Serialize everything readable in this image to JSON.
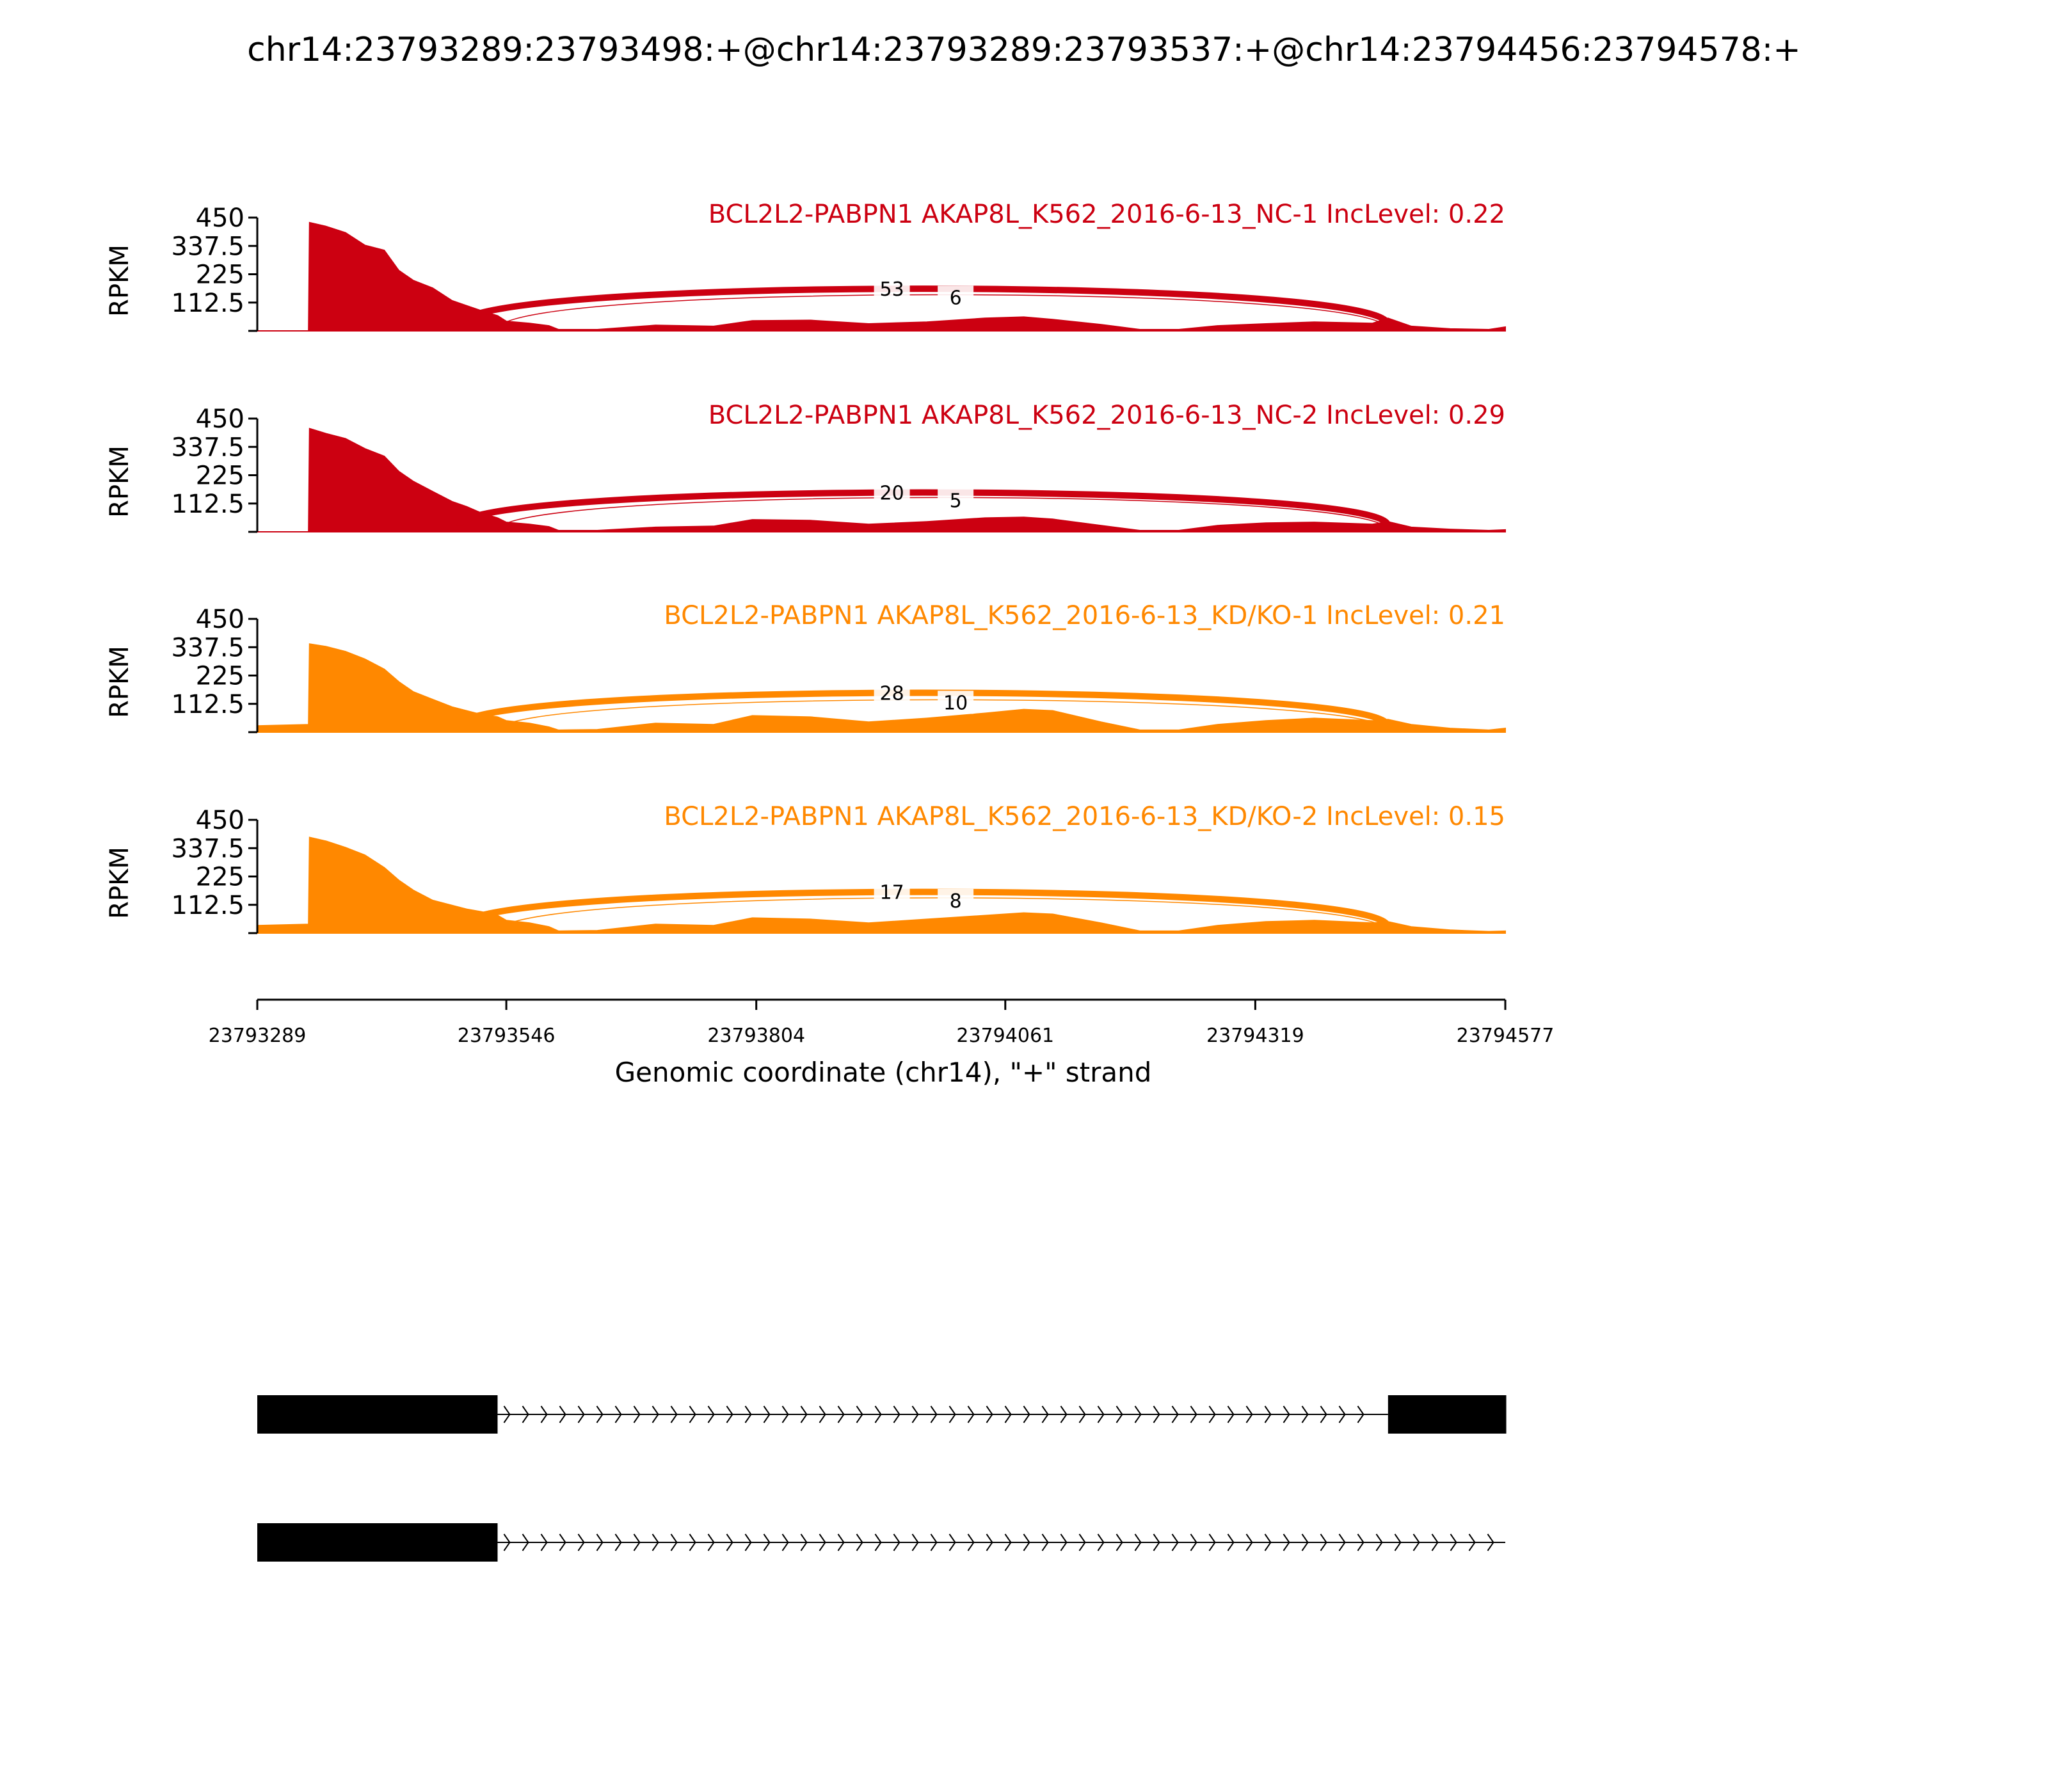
{
  "chart_data": {
    "type": "area",
    "title": "chr14:23793289:23793498:+@chr14:23793289:23793537:+@chr14:23794456:23794578:+",
    "xlabel": "Genomic coordinate (chr14), \"+\" strand",
    "ylabel": "RPKM",
    "xlim": [
      23793289,
      23794577
    ],
    "ylim": [
      0,
      450
    ],
    "x_ticks": [
      "23793289",
      "23793546",
      "23793804",
      "23794061",
      "23794319",
      "23794577"
    ],
    "y_ticks": [
      "450",
      "337.5",
      "225",
      "112.5"
    ],
    "tracks": [
      {
        "label": "BCL2L2-PABPN1 AKAP8L_K562_2016-6-13_NC-1 IncLevel: 0.22",
        "color": "#CC0011",
        "coverage": [
          [
            23793289,
            0
          ],
          [
            23793342,
            0
          ],
          [
            23793343,
            430
          ],
          [
            23793360,
            415
          ],
          [
            23793380,
            390
          ],
          [
            23793400,
            340
          ],
          [
            23793420,
            320
          ],
          [
            23793435,
            240
          ],
          [
            23793450,
            200
          ],
          [
            23793470,
            170
          ],
          [
            23793490,
            120
          ],
          [
            23793505,
            100
          ],
          [
            23793520,
            80
          ],
          [
            23793537,
            60
          ],
          [
            23793546,
            38
          ],
          [
            23793570,
            30
          ],
          [
            23793590,
            20
          ],
          [
            23793600,
            5
          ],
          [
            23793640,
            5
          ],
          [
            23793700,
            22
          ],
          [
            23793760,
            18
          ],
          [
            23793800,
            40
          ],
          [
            23793860,
            42
          ],
          [
            23793920,
            28
          ],
          [
            23793980,
            35
          ],
          [
            23794040,
            50
          ],
          [
            23794080,
            55
          ],
          [
            23794110,
            45
          ],
          [
            23794160,
            25
          ],
          [
            23794200,
            5
          ],
          [
            23794240,
            5
          ],
          [
            23794280,
            20
          ],
          [
            23794330,
            28
          ],
          [
            23794380,
            35
          ],
          [
            23794440,
            30
          ],
          [
            23794456,
            50
          ],
          [
            23794480,
            18
          ],
          [
            23794520,
            8
          ],
          [
            23794560,
            5
          ],
          [
            23794577,
            15
          ]
        ],
        "junctions": [
          {
            "start": 23793498,
            "end": 23794456,
            "count": "53",
            "peak": 215
          },
          {
            "start": 23793537,
            "end": 23794456,
            "count": "6",
            "peak": 190
          }
        ]
      },
      {
        "label": "BCL2L2-PABPN1 AKAP8L_K562_2016-6-13_NC-2 IncLevel: 0.29",
        "color": "#CC0011",
        "coverage": [
          [
            23793289,
            0
          ],
          [
            23793342,
            0
          ],
          [
            23793343,
            410
          ],
          [
            23793360,
            390
          ],
          [
            23793380,
            370
          ],
          [
            23793400,
            330
          ],
          [
            23793420,
            300
          ],
          [
            23793435,
            240
          ],
          [
            23793450,
            200
          ],
          [
            23793470,
            160
          ],
          [
            23793490,
            120
          ],
          [
            23793505,
            100
          ],
          [
            23793520,
            75
          ],
          [
            23793537,
            55
          ],
          [
            23793546,
            38
          ],
          [
            23793570,
            30
          ],
          [
            23793590,
            20
          ],
          [
            23793600,
            5
          ],
          [
            23793640,
            5
          ],
          [
            23793700,
            18
          ],
          [
            23793760,
            22
          ],
          [
            23793800,
            48
          ],
          [
            23793860,
            45
          ],
          [
            23793920,
            30
          ],
          [
            23793980,
            40
          ],
          [
            23794040,
            55
          ],
          [
            23794080,
            58
          ],
          [
            23794110,
            50
          ],
          [
            23794160,
            25
          ],
          [
            23794200,
            5
          ],
          [
            23794240,
            5
          ],
          [
            23794280,
            25
          ],
          [
            23794330,
            35
          ],
          [
            23794380,
            38
          ],
          [
            23794440,
            30
          ],
          [
            23794456,
            40
          ],
          [
            23794480,
            18
          ],
          [
            23794520,
            10
          ],
          [
            23794560,
            5
          ],
          [
            23794577,
            8
          ]
        ],
        "junctions": [
          {
            "start": 23793498,
            "end": 23794456,
            "count": "20",
            "peak": 200
          },
          {
            "start": 23793537,
            "end": 23794456,
            "count": "5",
            "peak": 180
          }
        ]
      },
      {
        "label": "BCL2L2-PABPN1 AKAP8L_K562_2016-6-13_KD/KO-1 IncLevel: 0.21",
        "color": "#FF8800",
        "coverage": [
          [
            23793289,
            25
          ],
          [
            23793342,
            30
          ],
          [
            23793343,
            350
          ],
          [
            23793360,
            340
          ],
          [
            23793380,
            320
          ],
          [
            23793400,
            290
          ],
          [
            23793420,
            250
          ],
          [
            23793435,
            200
          ],
          [
            23793450,
            160
          ],
          [
            23793470,
            130
          ],
          [
            23793490,
            100
          ],
          [
            23793505,
            85
          ],
          [
            23793520,
            70
          ],
          [
            23793537,
            60
          ],
          [
            23793546,
            45
          ],
          [
            23793570,
            35
          ],
          [
            23793590,
            20
          ],
          [
            23793600,
            8
          ],
          [
            23793640,
            10
          ],
          [
            23793700,
            35
          ],
          [
            23793760,
            30
          ],
          [
            23793800,
            65
          ],
          [
            23793860,
            60
          ],
          [
            23793920,
            40
          ],
          [
            23793980,
            55
          ],
          [
            23794040,
            75
          ],
          [
            23794080,
            90
          ],
          [
            23794110,
            85
          ],
          [
            23794160,
            40
          ],
          [
            23794200,
            8
          ],
          [
            23794240,
            8
          ],
          [
            23794280,
            30
          ],
          [
            23794330,
            45
          ],
          [
            23794380,
            55
          ],
          [
            23794440,
            45
          ],
          [
            23794456,
            50
          ],
          [
            23794480,
            30
          ],
          [
            23794520,
            15
          ],
          [
            23794560,
            8
          ],
          [
            23794577,
            15
          ]
        ],
        "junctions": [
          {
            "start": 23793498,
            "end": 23794456,
            "count": "28",
            "peak": 200
          },
          {
            "start": 23793537,
            "end": 23794456,
            "count": "10",
            "peak": 170
          }
        ]
      },
      {
        "label": "BCL2L2-PABPN1 AKAP8L_K562_2016-6-13_KD/KO-2 IncLevel: 0.15",
        "color": "#FF8800",
        "coverage": [
          [
            23793289,
            30
          ],
          [
            23793342,
            35
          ],
          [
            23793343,
            380
          ],
          [
            23793360,
            365
          ],
          [
            23793380,
            340
          ],
          [
            23793400,
            310
          ],
          [
            23793420,
            260
          ],
          [
            23793435,
            210
          ],
          [
            23793450,
            170
          ],
          [
            23793470,
            130
          ],
          [
            23793490,
            110
          ],
          [
            23793505,
            95
          ],
          [
            23793520,
            85
          ],
          [
            23793537,
            70
          ],
          [
            23793546,
            50
          ],
          [
            23793570,
            40
          ],
          [
            23793590,
            25
          ],
          [
            23793600,
            8
          ],
          [
            23793640,
            10
          ],
          [
            23793700,
            35
          ],
          [
            23793760,
            30
          ],
          [
            23793800,
            60
          ],
          [
            23793860,
            55
          ],
          [
            23793920,
            40
          ],
          [
            23793980,
            55
          ],
          [
            23794040,
            70
          ],
          [
            23794080,
            80
          ],
          [
            23794110,
            75
          ],
          [
            23794160,
            40
          ],
          [
            23794200,
            8
          ],
          [
            23794240,
            8
          ],
          [
            23794280,
            30
          ],
          [
            23794330,
            45
          ],
          [
            23794380,
            50
          ],
          [
            23794440,
            40
          ],
          [
            23794456,
            45
          ],
          [
            23794480,
            25
          ],
          [
            23794520,
            12
          ],
          [
            23794560,
            6
          ],
          [
            23794577,
            8
          ]
        ],
        "junctions": [
          {
            "start": 23793498,
            "end": 23794456,
            "count": "17",
            "peak": 210
          },
          {
            "start": 23793537,
            "end": 23794456,
            "count": "8",
            "peak": 185
          }
        ]
      }
    ],
    "gene_models": [
      {
        "exons": [
          [
            23793289,
            23793537
          ],
          [
            23794456,
            23794578
          ]
        ],
        "intron": [
          23793537,
          23794456
        ]
      },
      {
        "exons": [
          [
            23793289,
            23793537
          ]
        ],
        "intron": [
          23793537,
          23794577
        ]
      }
    ]
  }
}
